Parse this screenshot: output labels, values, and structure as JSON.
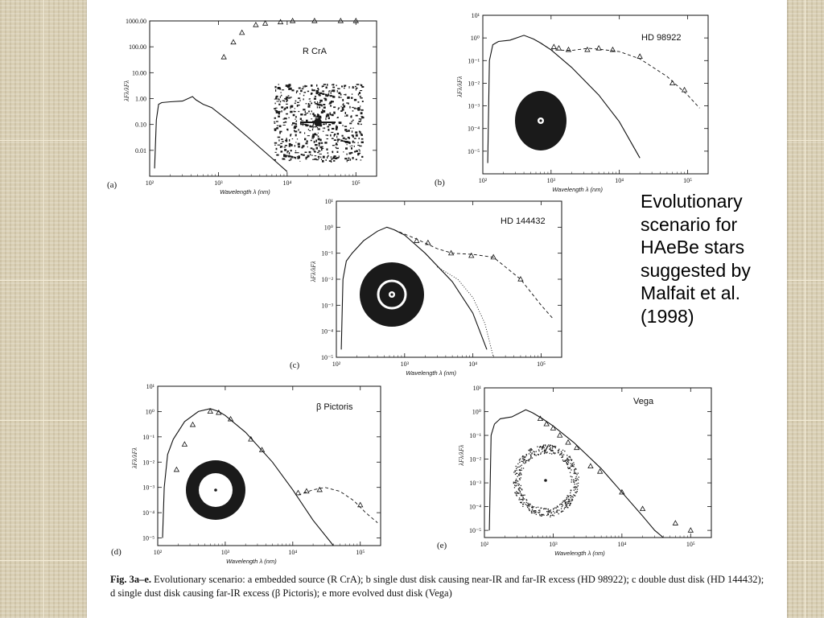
{
  "side_caption": "Evolutionary\nscenario for\nHAeBe stars\nsuggested by\nMalfait et al.\n(1998)",
  "figure_caption": {
    "bold_prefix": "Fig. 3a–e.",
    "text": " Evolutionary scenario: a embedded source (R CrA); b single dust disk causing near-IR and far-IR excess (HD 98922); c double dust disk (HD 144432); d single dust disk causing far-IR excess (β Pictoris); e more evolved dust disk (Vega)"
  },
  "colors": {
    "paper": "#ffffff",
    "background": "#d9cfb4",
    "ink": "#111111",
    "disk": "#1a1a1a"
  },
  "chart_data": [
    {
      "type": "scatter",
      "panel": "(a)",
      "title": "R CrA",
      "xlabel": "Wavelength  λ  (nm)",
      "ylabel": "λFλ/λFλ",
      "xscale": "log",
      "yscale": "log",
      "xlim": [
        100,
        200000
      ],
      "ylim": [
        0.001,
        1000
      ],
      "xticks": [
        "10²",
        "10³",
        "10⁴",
        "10⁵"
      ],
      "yticks": [
        "1000.00",
        "100.00",
        "10.00",
        "1.00",
        "0.10",
        "0.01"
      ],
      "series": [
        {
          "style": "solid-line",
          "x": [
            118,
            125,
            135,
            150,
            200,
            300,
            420,
            470,
            600,
            800,
            1500,
            3000,
            6000,
            10000
          ],
          "y": [
            0.002,
            0.15,
            0.6,
            0.7,
            0.75,
            0.8,
            1.2,
            0.9,
            0.6,
            0.45,
            0.12,
            0.025,
            0.005,
            0.0015
          ]
        },
        {
          "style": "triangles",
          "x": [
            1200,
            1650,
            2200,
            3500,
            4800,
            8000,
            12000,
            25000,
            60000,
            100000
          ],
          "y": [
            40,
            150,
            350,
            700,
            800,
            900,
            1000,
            1000,
            1000,
            1000
          ]
        }
      ],
      "inset": "dust-cloud"
    },
    {
      "type": "line",
      "panel": "(b)",
      "title": "HD 98922",
      "xlabel": "Wavelength  λ  (nm)",
      "ylabel": "λFλ/λFλ",
      "xscale": "log",
      "yscale": "log",
      "xlim": [
        100,
        200000
      ],
      "ylim": [
        1e-06,
        10
      ],
      "xticks": [
        "10²",
        "10³",
        "10⁴",
        "10⁵"
      ],
      "yticks": [
        "10¹",
        "10⁰",
        "10⁻¹",
        "10⁻²",
        "10⁻³",
        "10⁻⁴",
        "10⁻⁵"
      ],
      "series": [
        {
          "style": "solid-line",
          "x": [
            118,
            125,
            140,
            170,
            250,
            400,
            550,
            700,
            1000,
            2000,
            5000,
            10000,
            20000
          ],
          "y": [
            3e-06,
            0.1,
            0.5,
            0.7,
            0.8,
            1.3,
            0.9,
            0.6,
            0.3,
            0.05,
            0.003,
            0.0002,
            5e-06
          ]
        },
        {
          "style": "dashed-line",
          "x": [
            700,
            1000,
            2000,
            3500,
            5000,
            10000,
            20000,
            50000,
            100000,
            150000
          ],
          "y": [
            0.6,
            0.3,
            0.28,
            0.35,
            0.32,
            0.25,
            0.12,
            0.02,
            0.003,
            0.0008
          ]
        },
        {
          "style": "triangles",
          "x": [
            1100,
            1300,
            1800,
            3400,
            5000,
            8000,
            20000,
            60000,
            90000
          ],
          "y": [
            0.4,
            0.35,
            0.3,
            0.3,
            0.35,
            0.3,
            0.15,
            0.01,
            0.005
          ]
        }
      ],
      "inset": "single-disk"
    },
    {
      "type": "line",
      "panel": "(c)",
      "title": "HD 144432",
      "xlabel": "Wavelength  λ  (nm)",
      "ylabel": "λFλ/λFλ",
      "xscale": "log",
      "yscale": "log",
      "xlim": [
        100,
        200000
      ],
      "ylim": [
        1e-05,
        10
      ],
      "xticks": [
        "10²",
        "10³",
        "10⁴",
        "10⁵"
      ],
      "yticks": [
        "10¹",
        "10⁰",
        "10⁻¹",
        "10⁻²",
        "10⁻³",
        "10⁻⁴",
        "10⁻⁵"
      ],
      "series": [
        {
          "style": "solid-line",
          "x": [
            118,
            125,
            140,
            170,
            250,
            400,
            550,
            700,
            1000,
            2000,
            5000,
            10000,
            16000
          ],
          "y": [
            2e-05,
            0.01,
            0.05,
            0.1,
            0.3,
            0.7,
            1.0,
            0.8,
            0.5,
            0.1,
            0.008,
            0.0005,
            2e-05
          ]
        },
        {
          "style": "dashed-line",
          "x": [
            700,
            1500,
            3000,
            5000,
            10000,
            20000,
            50000,
            100000,
            150000
          ],
          "y": [
            0.8,
            0.35,
            0.15,
            0.1,
            0.09,
            0.07,
            0.01,
            0.001,
            0.0003
          ]
        },
        {
          "style": "dotted-line",
          "x": [
            3000,
            6000,
            10000,
            15000,
            20000
          ],
          "y": [
            0.03,
            0.01,
            0.002,
            0.0002,
            1e-05
          ]
        },
        {
          "style": "triangles",
          "x": [
            1500,
            2200,
            4800,
            9500,
            20000,
            50000
          ],
          "y": [
            0.3,
            0.25,
            0.1,
            0.08,
            0.07,
            0.01
          ]
        }
      ],
      "inset": "double-disk"
    },
    {
      "type": "line",
      "panel": "(d)",
      "title": "β Pictoris",
      "xlabel": "Wavelength  λ  (nm)",
      "ylabel": "λFλ/λFλ",
      "xscale": "log",
      "yscale": "log",
      "xlim": [
        100,
        200000
      ],
      "ylim": [
        5e-06,
        10
      ],
      "xticks": [
        "10²",
        "10³",
        "10⁴",
        "10⁵"
      ],
      "yticks": [
        "10¹",
        "10⁰",
        "10⁻¹",
        "10⁻²",
        "10⁻³",
        "10⁻⁴",
        "10⁻⁵"
      ],
      "series": [
        {
          "style": "solid-line",
          "x": [
            118,
            125,
            140,
            170,
            250,
            400,
            600,
            800,
            1000,
            2000,
            5000,
            10000,
            20000,
            40000
          ],
          "y": [
            1e-05,
            0.001,
            0.02,
            0.08,
            0.4,
            1.0,
            1.3,
            1.0,
            0.7,
            0.15,
            0.01,
            0.0008,
            5e-05,
            5e-06
          ]
        },
        {
          "style": "dashed-line",
          "x": [
            12000,
            20000,
            30000,
            50000,
            80000,
            120000,
            180000
          ],
          "y": [
            0.0005,
            0.0008,
            0.001,
            0.0007,
            0.0003,
            0.0001,
            4e-05
          ]
        },
        {
          "style": "triangles",
          "x": [
            190,
            250,
            330,
            600,
            800,
            1200,
            2400,
            3500,
            12000,
            16000,
            25000,
            100000
          ],
          "y": [
            0.005,
            0.05,
            0.3,
            1.0,
            0.9,
            0.5,
            0.08,
            0.03,
            0.0006,
            0.0007,
            0.0008,
            0.0002
          ]
        }
      ],
      "inset": "ring-disk"
    },
    {
      "type": "line",
      "panel": "(e)",
      "title": "Vega",
      "xlabel": "Wavelength  λ  (nm)",
      "ylabel": "λFλ/λFλ",
      "xscale": "log",
      "yscale": "log",
      "xlim": [
        100,
        200000
      ],
      "ylim": [
        5e-06,
        10
      ],
      "xticks": [
        "10²",
        "10³",
        "10⁴",
        "10⁵"
      ],
      "yticks": [
        "10¹",
        "10⁰",
        "10⁻¹",
        "10⁻²",
        "10⁻³",
        "10⁻⁴",
        "10⁻⁵"
      ],
      "series": [
        {
          "style": "solid-line",
          "x": [
            118,
            125,
            140,
            170,
            250,
            400,
            500,
            700,
            1000,
            2000,
            5000,
            10000,
            20000,
            30000,
            40000
          ],
          "y": [
            1e-05,
            0.1,
            0.3,
            0.5,
            0.6,
            1.2,
            0.9,
            0.5,
            0.25,
            0.05,
            0.004,
            0.0004,
            4e-05,
            1e-05,
            5e-06
          ]
        },
        {
          "style": "triangles",
          "x": [
            650,
            800,
            1000,
            1250,
            1650,
            2200,
            3500,
            4800,
            10000,
            20000,
            60000,
            100000
          ],
          "y": [
            0.5,
            0.3,
            0.2,
            0.1,
            0.05,
            0.03,
            0.005,
            0.003,
            0.0004,
            8e-05,
            2e-05,
            1e-05
          ]
        }
      ],
      "inset": "dust-ring"
    }
  ]
}
